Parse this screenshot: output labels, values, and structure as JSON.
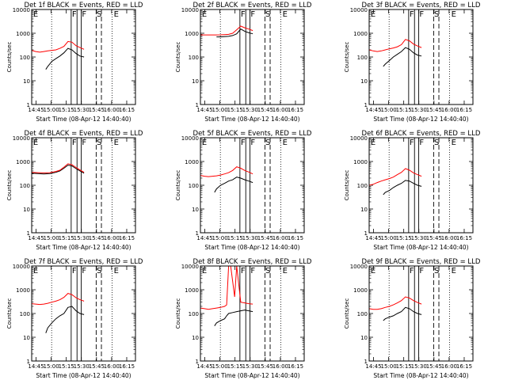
{
  "figure": {
    "background": "#ffffff",
    "events_color": "#000000",
    "lld_color": "#ff0000"
  },
  "shared_axes": {
    "ylabel": "Counts/sec",
    "xlabel": "Start Time (08-Apr-12 14:40:40)",
    "x_ticks": [
      "14:45",
      "15:00",
      "15:15",
      "15:30",
      "15:45",
      "16:00",
      "16:15"
    ],
    "x_tick_minutes": [
      4.33,
      19.33,
      34.33,
      49.33,
      64.33,
      79.33,
      94.33
    ],
    "xlim_minutes": [
      0,
      103
    ],
    "y_ticks": [
      "1",
      "10",
      "100",
      "1000",
      "10000"
    ],
    "ylim": [
      1,
      10000
    ],
    "yscale": "log"
  },
  "markers": {
    "dotted_minutes": [
      19.8,
      79.8
    ],
    "solid_minutes": [
      39.2,
      45.0,
      49.2
    ],
    "dashed_minutes": [
      64.0,
      69.2
    ],
    "letters": [
      {
        "text": "E",
        "minute": 1.5
      },
      {
        "text": "F",
        "minute": 40.0
      },
      {
        "text": "F",
        "minute": 49.8
      },
      {
        "text": "S",
        "minute": 64.5
      },
      {
        "text": "E",
        "minute": 81.5
      }
    ]
  },
  "chart_data": [
    {
      "type": "line",
      "title": "Det 1f BLACK = Events, RED = LLD",
      "series": [
        {
          "name": "Events",
          "x": [
            14,
            16,
            20,
            24,
            28,
            32,
            36,
            40,
            44,
            48,
            52
          ],
          "y": [
            30,
            40,
            65,
            85,
            110,
            150,
            230,
            200,
            140,
            110,
            100
          ]
        },
        {
          "name": "LLD",
          "x": [
            0,
            4,
            8,
            12,
            16,
            20,
            24,
            28,
            32,
            36,
            40,
            44,
            48,
            52
          ],
          "y": [
            190,
            170,
            160,
            170,
            180,
            190,
            200,
            230,
            280,
            450,
            420,
            300,
            250,
            210
          ]
        }
      ]
    },
    {
      "type": "line",
      "title": "Det 2f BLACK = Events, RED = LLD",
      "series": [
        {
          "name": "Events",
          "x": [
            16,
            20,
            24,
            28,
            32,
            36,
            40,
            44,
            48,
            52
          ],
          "y": [
            700,
            700,
            720,
            740,
            800,
            950,
            1500,
            1200,
            1050,
            950
          ]
        },
        {
          "name": "LLD",
          "x": [
            0,
            4,
            8,
            12,
            16,
            20,
            24,
            28,
            32,
            36,
            40,
            44,
            48,
            52
          ],
          "y": [
            850,
            850,
            850,
            850,
            850,
            860,
            880,
            900,
            1000,
            1400,
            2000,
            1700,
            1500,
            1300
          ]
        }
      ]
    },
    {
      "type": "line",
      "title": "Det 3f BLACK = Events, RED = LLD",
      "series": [
        {
          "name": "Events",
          "x": [
            14,
            16,
            20,
            24,
            28,
            32,
            36,
            40,
            44,
            48,
            52
          ],
          "y": [
            40,
            50,
            70,
            100,
            130,
            170,
            250,
            210,
            150,
            120,
            110
          ]
        },
        {
          "name": "LLD",
          "x": [
            0,
            4,
            8,
            12,
            16,
            20,
            24,
            28,
            32,
            36,
            40,
            44,
            48,
            52
          ],
          "y": [
            200,
            180,
            170,
            180,
            200,
            220,
            240,
            270,
            330,
            550,
            480,
            350,
            290,
            250
          ]
        }
      ]
    },
    {
      "type": "line",
      "title": "Det 4f BLACK = Events, RED = LLD",
      "series": [
        {
          "name": "Events",
          "x": [
            0,
            6,
            12,
            18,
            24,
            28,
            32,
            36,
            40,
            44,
            48,
            52
          ],
          "y": [
            320,
            310,
            300,
            310,
            350,
            400,
            520,
            700,
            650,
            500,
            400,
            320
          ]
        },
        {
          "name": "LLD",
          "x": [
            0,
            6,
            12,
            18,
            24,
            28,
            32,
            36,
            40,
            44,
            48,
            52
          ],
          "y": [
            350,
            340,
            330,
            340,
            380,
            430,
            580,
            800,
            730,
            560,
            440,
            350
          ]
        }
      ]
    },
    {
      "type": "line",
      "title": "Det 5f BLACK = Events, RED = LLD",
      "series": [
        {
          "name": "Events",
          "x": [
            14,
            16,
            20,
            24,
            28,
            32,
            36,
            40,
            44,
            48,
            52
          ],
          "y": [
            50,
            70,
            100,
            120,
            150,
            170,
            220,
            200,
            170,
            150,
            130
          ]
        },
        {
          "name": "LLD",
          "x": [
            0,
            4,
            8,
            12,
            16,
            20,
            24,
            28,
            32,
            36,
            40,
            44,
            48,
            52
          ],
          "y": [
            260,
            240,
            230,
            240,
            250,
            270,
            300,
            340,
            420,
            600,
            520,
            420,
            360,
            300
          ]
        }
      ]
    },
    {
      "type": "line",
      "title": "Det 6f BLACK = Events, RED = LLD",
      "series": [
        {
          "name": "Events",
          "x": [
            14,
            16,
            20,
            24,
            28,
            32,
            36,
            40,
            44,
            48,
            52
          ],
          "y": [
            40,
            50,
            60,
            80,
            100,
            120,
            160,
            150,
            120,
            100,
            90
          ]
        },
        {
          "name": "LLD",
          "x": [
            0,
            4,
            8,
            12,
            16,
            20,
            24,
            28,
            32,
            36,
            40,
            44,
            48,
            52
          ],
          "y": [
            100,
            110,
            130,
            150,
            170,
            190,
            220,
            280,
            350,
            500,
            430,
            330,
            280,
            240
          ]
        }
      ]
    },
    {
      "type": "line",
      "title": "Det 7f BLACK = Events, RED = LLD",
      "series": [
        {
          "name": "Events",
          "x": [
            14,
            16,
            20,
            24,
            28,
            32,
            36,
            40,
            44,
            48,
            52
          ],
          "y": [
            15,
            25,
            40,
            60,
            80,
            100,
            180,
            200,
            130,
            100,
            90
          ]
        },
        {
          "name": "LLD",
          "x": [
            0,
            4,
            8,
            12,
            16,
            20,
            24,
            28,
            32,
            36,
            40,
            44,
            48,
            52
          ],
          "y": [
            260,
            250,
            240,
            250,
            270,
            300,
            330,
            380,
            480,
            700,
            620,
            460,
            380,
            330
          ]
        }
      ]
    },
    {
      "type": "line",
      "title": "Det 8f BLACK = Events, RED = LLD",
      "series": [
        {
          "name": "Events",
          "x": [
            14,
            16,
            20,
            24,
            26,
            28,
            32,
            36,
            40,
            44,
            48,
            52
          ],
          "y": [
            30,
            40,
            50,
            60,
            80,
            100,
            110,
            120,
            130,
            140,
            130,
            120
          ]
        },
        {
          "name": "LLD",
          "x": [
            0,
            4,
            8,
            12,
            16,
            20,
            24,
            26,
            28,
            30,
            34,
            36,
            40,
            44,
            48,
            52
          ],
          "y": [
            170,
            160,
            150,
            160,
            170,
            180,
            200,
            230,
            10000,
            10000,
            500,
            10000,
            300,
            280,
            260,
            250
          ]
        }
      ]
    },
    {
      "type": "line",
      "title": "Det 9f BLACK = Events, RED = LLD",
      "series": [
        {
          "name": "Events",
          "x": [
            14,
            16,
            20,
            24,
            28,
            32,
            36,
            40,
            44,
            48,
            52
          ],
          "y": [
            50,
            60,
            70,
            80,
            100,
            120,
            180,
            160,
            120,
            100,
            90
          ]
        },
        {
          "name": "LLD",
          "x": [
            0,
            4,
            8,
            12,
            16,
            20,
            24,
            28,
            32,
            36,
            40,
            44,
            48,
            52
          ],
          "y": [
            160,
            150,
            150,
            160,
            180,
            200,
            230,
            280,
            350,
            500,
            450,
            350,
            290,
            250
          ]
        }
      ]
    }
  ]
}
